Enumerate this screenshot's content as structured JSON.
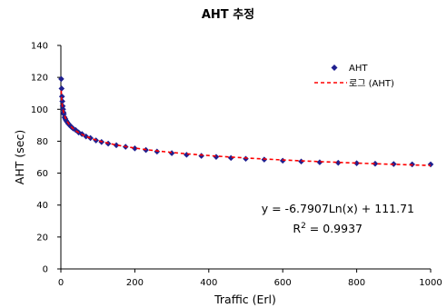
{
  "chart_data": {
    "type": "scatter",
    "title": "AHT 추정",
    "xlabel": "Traffic (Erl)",
    "ylabel": "AHT (sec)",
    "xlim": [
      0,
      1000
    ],
    "ylim": [
      0,
      140
    ],
    "x_ticks": [
      "0",
      "200",
      "400",
      "600",
      "800",
      "1000"
    ],
    "y_ticks": [
      "0",
      "20",
      "40",
      "60",
      "80",
      "100",
      "120",
      "140"
    ],
    "grid": false,
    "legend_position": "top-right",
    "series": [
      {
        "name": "AHT",
        "marker": "diamond",
        "color": "#1f1f8f",
        "x": [
          1,
          2,
          3,
          4,
          5,
          6,
          7,
          8,
          10,
          12,
          14,
          17,
          20,
          24,
          28,
          33,
          40,
          48,
          57,
          68,
          80,
          95,
          110,
          128,
          150,
          175,
          200,
          230,
          260,
          300,
          340,
          380,
          420,
          460,
          500,
          550,
          600,
          650,
          700,
          750,
          800,
          850,
          900,
          950,
          1000
        ],
        "y": [
          119,
          113,
          108,
          105,
          102,
          100,
          98,
          97,
          95,
          94,
          93,
          92,
          91,
          90,
          89,
          88,
          87,
          85.5,
          84.5,
          83,
          82,
          80.5,
          79.5,
          78.5,
          77.5,
          76.5,
          75.5,
          74.5,
          73.5,
          72.5,
          71.5,
          70.8,
          70.2,
          69.5,
          69,
          68.5,
          67.8,
          67.3,
          66.8,
          66.5,
          66.2,
          65.9,
          65.7,
          65.5,
          65.5
        ]
      }
    ],
    "trendline": {
      "name": "로그 (AHT)",
      "color": "#ff0000",
      "style": "dashed",
      "a": -6.7907,
      "b": 111.71
    },
    "equation_text": "y = -6.7907Ln(x) + 111.71",
    "r2_prefix": "R",
    "r2_superscript": "2",
    "r2_value_text": " = 0.9937"
  }
}
